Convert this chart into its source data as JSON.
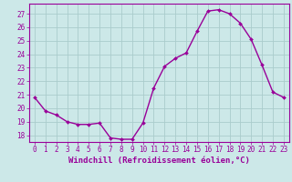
{
  "x": [
    0,
    1,
    2,
    3,
    4,
    5,
    6,
    7,
    8,
    9,
    10,
    11,
    12,
    13,
    14,
    15,
    16,
    17,
    18,
    19,
    20,
    21,
    22,
    23
  ],
  "y": [
    20.8,
    19.8,
    19.5,
    19.0,
    18.8,
    18.8,
    18.9,
    17.8,
    17.7,
    17.7,
    18.9,
    21.5,
    23.1,
    23.7,
    24.1,
    25.7,
    27.2,
    27.3,
    27.0,
    26.3,
    25.1,
    23.2,
    21.2,
    20.8
  ],
  "line_color": "#990099",
  "marker": "D",
  "markersize": 2.0,
  "linewidth": 1.0,
  "bg_color": "#cce8e8",
  "grid_color": "#aacccc",
  "xlabel": "Windchill (Refroidissement éolien,°C)",
  "xlabel_color": "#990099",
  "xlabel_fontsize": 6.5,
  "tick_color": "#990099",
  "tick_fontsize": 5.5,
  "ytick_labels": [
    "18",
    "19",
    "20",
    "21",
    "22",
    "23",
    "24",
    "25",
    "26",
    "27"
  ],
  "ylim": [
    17.5,
    27.75
  ],
  "xlim": [
    -0.5,
    23.5
  ],
  "xtick_labels": [
    "0",
    "1",
    "2",
    "3",
    "4",
    "5",
    "6",
    "7",
    "8",
    "9",
    "10",
    "11",
    "12",
    "13",
    "14",
    "15",
    "16",
    "17",
    "18",
    "19",
    "20",
    "21",
    "22",
    "23"
  ]
}
